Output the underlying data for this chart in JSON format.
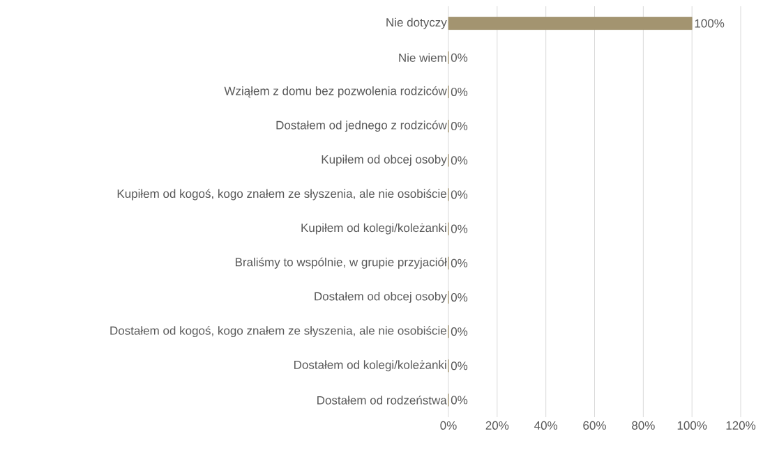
{
  "chart_data": {
    "type": "bar",
    "orientation": "horizontal",
    "categories": [
      "Nie dotyczy",
      "Nie wiem",
      "Wziąłem z domu bez pozwolenia rodziców",
      "Dostałem od jednego z rodziców",
      "Kupiłem od obcej osoby",
      "Kupiłem od kogoś, kogo znałem ze słyszenia, ale nie osobiście",
      "Kupiłem od kolegi/koleżanki",
      "Braliśmy to wspólnie, w grupie przyjaciół",
      "Dostałem od obcej osoby",
      "Dostałem od kogoś, kogo znałem ze słyszenia, ale nie osobiście",
      "Dostałem od kolegi/koleżanki",
      "Dostałem od rodzeństwa"
    ],
    "values": [
      100,
      0,
      0,
      0,
      0,
      0,
      0,
      0,
      0,
      0,
      0,
      0
    ],
    "value_labels": [
      "100%",
      "0%",
      "0%",
      "0%",
      "0%",
      "0%",
      "0%",
      "0%",
      "0%",
      "0%",
      "0%",
      "0%"
    ],
    "color": "#a39470",
    "xlim": [
      0,
      120
    ],
    "xticks": [
      {
        "value": 0,
        "label": "0%"
      },
      {
        "value": 20,
        "label": "20%"
      },
      {
        "value": 40,
        "label": "40%"
      },
      {
        "value": 60,
        "label": "60%"
      },
      {
        "value": 80,
        "label": "80%"
      },
      {
        "value": 100,
        "label": "100%"
      },
      {
        "value": 120,
        "label": "120%"
      }
    ],
    "grid": "x"
  }
}
